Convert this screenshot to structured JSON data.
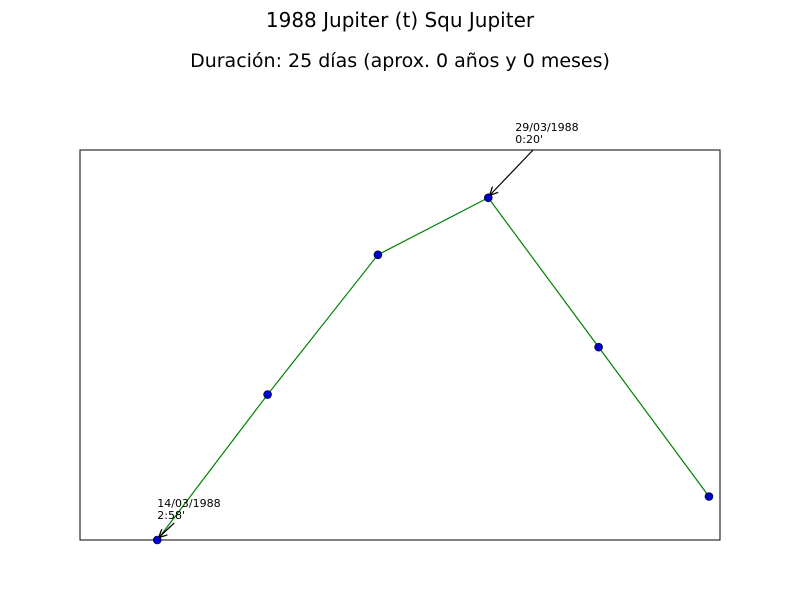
{
  "chart_data": {
    "type": "line",
    "title": "1988 Jupiter (t) Squ Jupiter",
    "subtitle": "Duración: 25 días (aprox. 0 años y 0 meses)",
    "xlabel": "",
    "ylabel": "",
    "grid": false,
    "legend": "none",
    "x": [
      0,
      1,
      2,
      3,
      4,
      5
    ],
    "y": [
      0.0,
      0.408,
      0.8,
      0.96,
      0.541,
      0.122
    ],
    "xlim": [
      -0.7,
      5.1
    ],
    "ylim": [
      0.0,
      1.094
    ],
    "line_color": "#008000",
    "marker_color": "#0000cc",
    "annotations": [
      {
        "point_index": 0,
        "lines": [
          "14/03/1988",
          "2:58'"
        ]
      },
      {
        "point_index": 3,
        "lines": [
          "29/03/1988",
          "0:20'"
        ]
      }
    ]
  }
}
